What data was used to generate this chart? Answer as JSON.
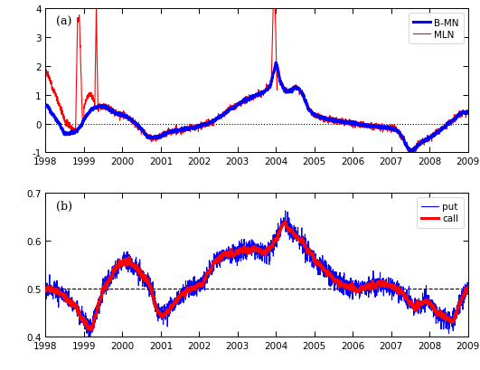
{
  "xlim_a": [
    1998.0,
    2009.0
  ],
  "ylim_a": [
    -1.0,
    4.0
  ],
  "yticks_a": [
    -1,
    0,
    1,
    2,
    3,
    4
  ],
  "xlim_b": [
    1998.0,
    2009.0
  ],
  "ylim_b": [
    0.4,
    0.7
  ],
  "yticks_b": [
    0.4,
    0.5,
    0.6,
    0.7
  ],
  "label_a": "(a)",
  "label_b": "(b)",
  "legend_a": [
    "B-MN",
    "MLN"
  ],
  "legend_b": [
    "put",
    "call"
  ],
  "bmn_color": "#0000FF",
  "mln_color": "#FF0000",
  "put_color": "#0000FF",
  "call_color": "#FF0000",
  "bmn_lw": 2.2,
  "mln_lw": 0.8,
  "put_lw": 0.8,
  "call_lw": 2.2,
  "hline_a": 0.0,
  "hline_b": 0.5,
  "xticks": [
    1998,
    1999,
    2000,
    2001,
    2002,
    2003,
    2004,
    2005,
    2006,
    2007,
    2008,
    2009
  ]
}
